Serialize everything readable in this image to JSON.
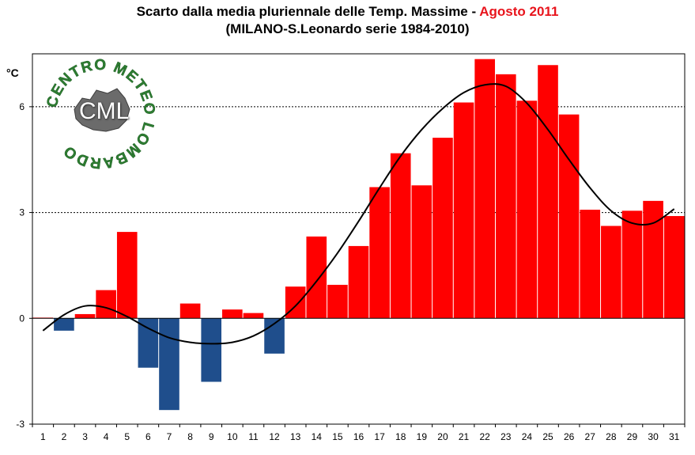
{
  "chart_data": {
    "type": "bar",
    "title_main": "Scarto dalla media pluriennale delle Temp. Massime - ",
    "title_accent": "Agosto 2011",
    "subtitle": "(MILANO-S.Leonardo serie 1984-2010)",
    "ylabel": "°C",
    "xlabel": "",
    "ylim": [
      -3,
      7.5
    ],
    "yticks": [
      -3,
      0,
      3,
      6
    ],
    "gridlines_at": [
      3,
      6
    ],
    "categories": [
      "1",
      "2",
      "3",
      "4",
      "5",
      "6",
      "7",
      "8",
      "9",
      "10",
      "11",
      "12",
      "13",
      "14",
      "15",
      "16",
      "17",
      "18",
      "19",
      "20",
      "21",
      "22",
      "23",
      "24",
      "25",
      "26",
      "27",
      "28",
      "29",
      "30",
      "31"
    ],
    "values": [
      0.02,
      -0.35,
      0.12,
      0.8,
      2.45,
      -1.4,
      -2.6,
      0.42,
      -1.8,
      0.25,
      0.15,
      -1.0,
      0.9,
      2.32,
      0.95,
      2.05,
      3.72,
      4.68,
      3.77,
      5.12,
      6.12,
      7.35,
      6.92,
      6.17,
      7.18,
      5.78,
      3.08,
      2.62,
      3.05,
      3.33,
      2.9
    ],
    "positive_color": "#ff0000",
    "negative_color": "#1f4e8c",
    "trend_line": {
      "x": [
        1,
        2,
        3,
        4,
        5,
        6,
        7,
        8,
        9,
        10,
        11,
        12,
        13,
        14,
        15,
        16,
        17,
        18,
        19,
        20,
        21,
        22,
        23,
        24,
        25,
        26,
        27,
        28,
        29,
        30,
        31
      ],
      "y": [
        -0.35,
        0.1,
        0.35,
        0.3,
        0.05,
        -0.28,
        -0.55,
        -0.68,
        -0.72,
        -0.68,
        -0.5,
        -0.15,
        0.35,
        1.05,
        1.85,
        2.75,
        3.7,
        4.6,
        5.35,
        5.95,
        6.4,
        6.62,
        6.58,
        6.1,
        5.35,
        4.5,
        3.7,
        3.05,
        2.7,
        2.7,
        3.1
      ],
      "color": "#000000"
    }
  },
  "logo": {
    "ring_text": "CENTRO METEO LOMBARDO",
    "center_text": "CML",
    "color": "#2e7d32"
  }
}
